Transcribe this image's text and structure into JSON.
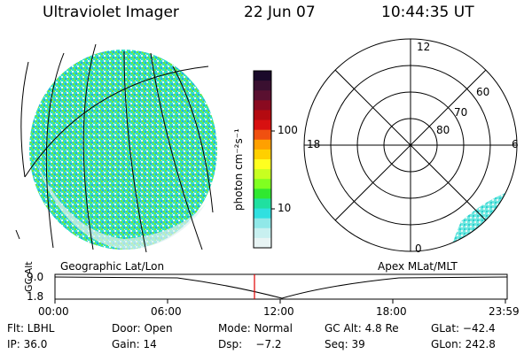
{
  "header": {
    "title": "Ultraviolet Imager",
    "date": "22 Jun 07",
    "time": "10:44:35 UT"
  },
  "colorbar": {
    "unit_label": "photon cm⁻²s⁻¹",
    "ticks": [
      "100",
      "10"
    ],
    "colors": [
      "#1a0a2a",
      "#3a1030",
      "#5a1030",
      "#8a0a20",
      "#b40a10",
      "#d81010",
      "#f05010",
      "#ffa000",
      "#ffd000",
      "#ffff20",
      "#c8ff20",
      "#80ff20",
      "#30e830",
      "#20e0a0",
      "#30e0e0",
      "#90e8e8",
      "#c8f0f0",
      "#e8f4f4"
    ]
  },
  "polar_grid": {
    "mlt_labels": [
      "12",
      "18",
      "6",
      "0"
    ],
    "lat_labels": [
      "60",
      "70",
      "80"
    ]
  },
  "map_labels": {
    "left": "Geographic Lat/Lon",
    "right": "Apex MLat/MLT"
  },
  "altitude_plot": {
    "ylabel": "GC Alt",
    "yticks": [
      "9.0",
      "1.8"
    ],
    "xticks": [
      "00:00",
      "06:00",
      "12:00",
      "18:00",
      "23:59"
    ]
  },
  "info": {
    "row1": [
      "Flt: LBHL",
      "Door: Open",
      "Mode: Normal",
      "GC Alt: 4.8 Re",
      "GLat: −42.4"
    ],
    "row2": [
      "IP: 36.0",
      "Gain: 14",
      "Dsp:    −7.2",
      "Seq: 39",
      "GLon: 242.8"
    ]
  }
}
